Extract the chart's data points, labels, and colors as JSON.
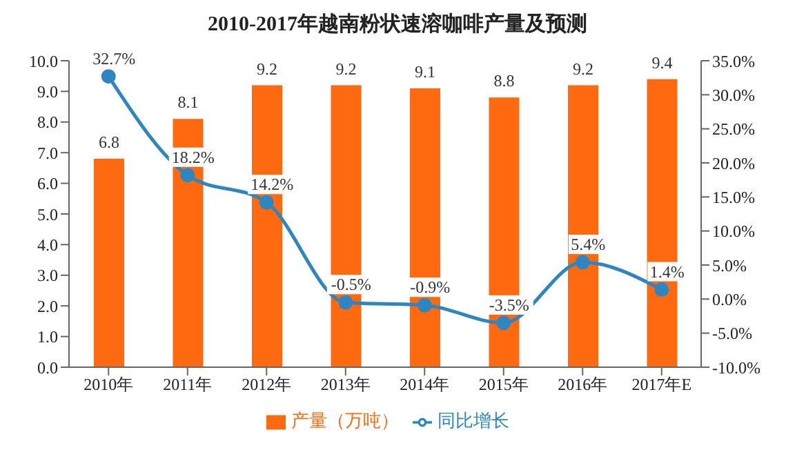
{
  "chart_data": {
    "type": "bar",
    "title": "2010-2017年越南粉状速溶咖啡产量及预测",
    "categories": [
      "2010年",
      "2011年",
      "2012年",
      "2013年",
      "2014年",
      "2015年",
      "2016年",
      "2017年E"
    ],
    "series": [
      {
        "name": "产量（万吨）",
        "color": "#ff6a10",
        "values": [
          6.8,
          8.1,
          9.2,
          9.2,
          9.1,
          8.8,
          9.2,
          9.4
        ],
        "value_labels": [
          "6.8",
          "8.1",
          "9.2",
          "9.2",
          "9.1",
          "8.8",
          "9.2",
          "9.4"
        ]
      },
      {
        "name": "同比增长",
        "type": "line",
        "axis": "y2",
        "color": "#2e86c1",
        "values": [
          32.7,
          18.2,
          14.2,
          -0.5,
          -0.9,
          -3.5,
          5.4,
          1.4
        ],
        "value_labels": [
          "32.7%",
          "18.2%",
          "14.2%",
          "-0.5%",
          "-0.9%",
          "-3.5%",
          "5.4%",
          "1.4%"
        ]
      }
    ],
    "ylim": [
      0,
      10
    ],
    "yticks": [
      {
        "value": 0,
        "label": "0.0"
      },
      {
        "value": 1,
        "label": "1.0"
      },
      {
        "value": 2,
        "label": "2.0"
      },
      {
        "value": 3,
        "label": "3.0"
      },
      {
        "value": 4,
        "label": "4.0"
      },
      {
        "value": 5,
        "label": "5.0"
      },
      {
        "value": 6,
        "label": "6.0"
      },
      {
        "value": 7,
        "label": "7.0"
      },
      {
        "value": 8,
        "label": "8.0"
      },
      {
        "value": 9,
        "label": "9.0"
      },
      {
        "value": 10,
        "label": "10.0"
      }
    ],
    "y2lim": [
      -10,
      35
    ],
    "y2ticks": [
      {
        "value": -10,
        "label": "-10.0%"
      },
      {
        "value": -5,
        "label": "-5.0%"
      },
      {
        "value": 0,
        "label": "0.0%"
      },
      {
        "value": 5,
        "label": "5.0%"
      },
      {
        "value": 10,
        "label": "10.0%"
      },
      {
        "value": 15,
        "label": "15.0%"
      },
      {
        "value": 20,
        "label": "20.0%"
      },
      {
        "value": 25,
        "label": "25.0%"
      },
      {
        "value": 30,
        "label": "30.0%"
      },
      {
        "value": 35,
        "label": "35.0%"
      }
    ],
    "legend": "bottom",
    "marker": "circle"
  }
}
